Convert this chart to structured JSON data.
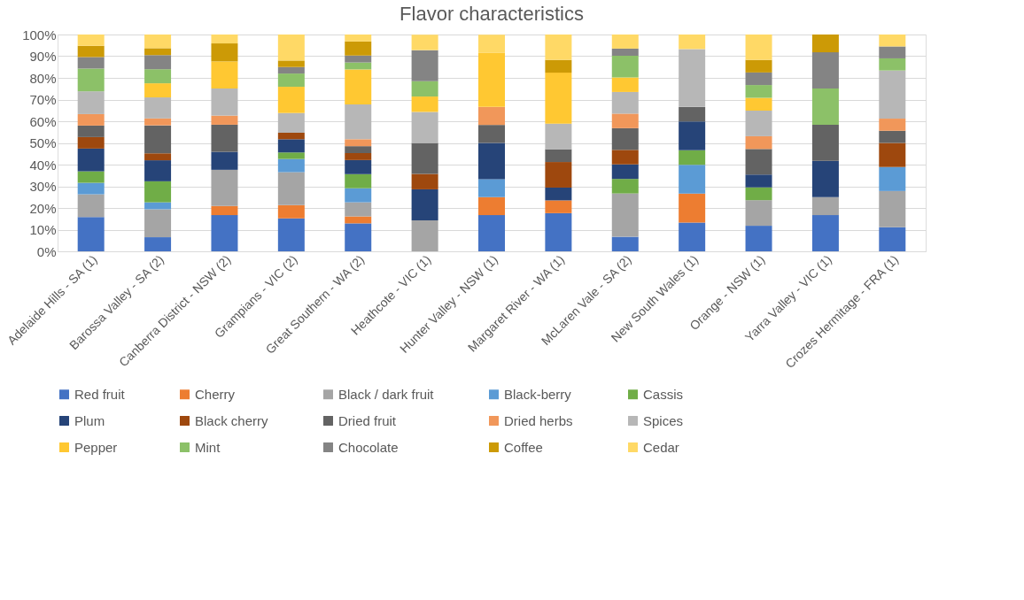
{
  "chart_data": {
    "type": "bar",
    "title": "Flavor characteristics",
    "stacked": true,
    "grid": "y",
    "legend": "bottom",
    "categories": [
      "Adelaide Hills - SA (1)",
      "Barossa Valley - SA (2)",
      "Canberra District - NSW (2)",
      "Grampians - VIC (2)",
      "Great Southern - WA (2)",
      "Heathcote - VIC (1)",
      "Hunter Valley - NSW (1)",
      "Margaret River - WA (1)",
      "McLaren Vale - SA (2)",
      "New South Wales (1)",
      "Orange - NSW (1)",
      "Yarra Valley - VIC (1)",
      "Crozes Hermitage - FRA (1)"
    ],
    "ylim": [
      0,
      100
    ],
    "yticks": [
      {
        "value": 0,
        "label": "0%"
      },
      {
        "value": 10,
        "label": "10%"
      },
      {
        "value": 20,
        "label": "20%"
      },
      {
        "value": 30,
        "label": "30%"
      },
      {
        "value": 40,
        "label": "40%"
      },
      {
        "value": 50,
        "label": "50%"
      },
      {
        "value": 60,
        "label": "60%"
      },
      {
        "value": 70,
        "label": "70%"
      },
      {
        "value": 80,
        "label": "80%"
      },
      {
        "value": 90,
        "label": "90%"
      },
      {
        "value": 100,
        "label": "100%"
      }
    ],
    "series": [
      {
        "name": "Red fruit",
        "color": "#4472c4",
        "values": [
          15.8,
          6.5,
          16.7,
          15.2,
          12.9,
          0,
          16.7,
          17.6,
          6.7,
          13.3,
          11.8,
          16.7,
          11.1
        ]
      },
      {
        "name": "Cherry",
        "color": "#ed7d31",
        "values": [
          0,
          0,
          4.2,
          6.1,
          3.2,
          0,
          8.3,
          5.9,
          0,
          13.3,
          0,
          0,
          0
        ]
      },
      {
        "name": "Black / dark fruit",
        "color": "#a5a5a5",
        "values": [
          10.5,
          12.9,
          16.7,
          15.2,
          6.5,
          14.3,
          0,
          0,
          20,
          0,
          11.8,
          8.3,
          16.7
        ]
      },
      {
        "name": "Black-berry",
        "color": "#5b9bd5",
        "values": [
          5.3,
          3.2,
          0,
          6.1,
          6.5,
          0,
          8.3,
          0,
          0,
          13.3,
          0,
          0,
          11.1
        ]
      },
      {
        "name": "Cassis",
        "color": "#70ad47",
        "values": [
          5.3,
          9.7,
          0,
          3.0,
          6.5,
          0,
          0,
          0,
          6.7,
          6.7,
          5.9,
          0,
          0
        ]
      },
      {
        "name": "Plum",
        "color": "#264478",
        "values": [
          10.5,
          9.7,
          8.3,
          6.1,
          6.5,
          14.3,
          16.7,
          5.9,
          6.7,
          13.3,
          5.9,
          16.7,
          0
        ]
      },
      {
        "name": "Black cherry",
        "color": "#9e480e",
        "values": [
          5.3,
          3.2,
          0,
          3.0,
          3.2,
          7.1,
          0,
          11.8,
          6.7,
          0,
          0,
          0,
          11.1
        ]
      },
      {
        "name": "Dried fruit",
        "color": "#636363",
        "values": [
          5.3,
          12.9,
          12.5,
          0,
          3.2,
          14.3,
          8.3,
          5.9,
          10,
          6.7,
          11.8,
          16.7,
          5.6
        ]
      },
      {
        "name": "Dried herbs",
        "color": "#f1975a",
        "values": [
          5.3,
          3.2,
          4.2,
          0,
          3.2,
          0,
          8.3,
          0,
          6.7,
          0,
          5.9,
          0,
          5.6
        ]
      },
      {
        "name": "Spices",
        "color": "#b7b7b7",
        "values": [
          10.5,
          9.7,
          12.5,
          9.1,
          16.1,
          14.3,
          0,
          11.8,
          10,
          26.7,
          11.8,
          0,
          22.2
        ]
      },
      {
        "name": "Pepper",
        "color": "#ffc832",
        "values": [
          0,
          6.5,
          12.5,
          12.1,
          16.1,
          7.1,
          25,
          23.5,
          6.7,
          0,
          5.9,
          0,
          0
        ]
      },
      {
        "name": "Mint",
        "color": "#8cc168",
        "values": [
          10.5,
          6.5,
          0,
          6.1,
          3.2,
          7.1,
          0,
          0,
          10,
          0,
          5.9,
          16.7,
          5.6
        ]
      },
      {
        "name": "Chocolate",
        "color": "#848484",
        "values": [
          5.3,
          6.5,
          0,
          3.0,
          3.2,
          14.3,
          0,
          0,
          3.3,
          0,
          5.8,
          16.7,
          5.5
        ]
      },
      {
        "name": "Coffee",
        "color": "#cc9a06",
        "values": [
          5.2,
          3.2,
          8.3,
          3.0,
          6.5,
          0,
          0,
          5.9,
          0,
          0,
          5.8,
          8.2,
          0
        ]
      },
      {
        "name": "Cedar",
        "color": "#ffd966",
        "values": [
          5.2,
          6.3,
          4.1,
          12.0,
          3.2,
          7.1,
          8.3,
          11.7,
          6.5,
          6.7,
          11.7,
          0,
          5.5
        ]
      }
    ]
  }
}
